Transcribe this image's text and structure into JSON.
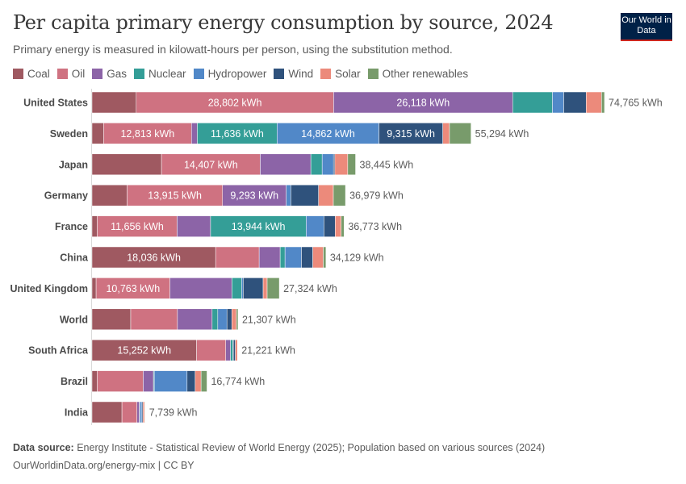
{
  "header": {
    "title": "Per capita primary energy consumption by source, 2024",
    "subtitle": "Primary energy is measured in kilowatt-hours per person, using the substitution method.",
    "logo_text": "Our World in Data"
  },
  "footer": {
    "source_label": "Data source:",
    "source_text": "Energy Institute - Statistical Review of World Energy (2025); Population based on various sources (2024)",
    "url_text": "OurWorldinData.org/energy-mix | CC BY"
  },
  "chart_data": {
    "type": "bar",
    "orientation": "horizontal",
    "stacked": true,
    "title": "Per capita primary energy consumption by source, 2024",
    "unit": "kWh",
    "legend_position": "top",
    "grid": false,
    "categories": [
      "United States",
      "Sweden",
      "Japan",
      "Germany",
      "France",
      "China",
      "United Kingdom",
      "World",
      "South Africa",
      "Brazil",
      "India"
    ],
    "totals": [
      "74,765 kWh",
      "55,294 kWh",
      "38,445 kWh",
      "36,979 kWh",
      "36,773 kWh",
      "34,129 kWh",
      "27,324 kWh",
      "21,307 kWh",
      "21,221 kWh",
      "16,774 kWh",
      "7,739 kWh"
    ],
    "series": [
      {
        "name": "Coal",
        "color": "#9f5961",
        "values": [
          6450,
          1700,
          10140,
          5130,
          760,
          18036,
          600,
          5650,
          15252,
          760,
          4369
        ]
      },
      {
        "name": "Oil",
        "color": "#cf7281",
        "values": [
          28802,
          12813,
          14407,
          13915,
          11656,
          6353,
          10763,
          6817,
          4259,
          6714,
          2190
        ]
      },
      {
        "name": "Gas",
        "color": "#8c64a7",
        "values": [
          26118,
          850,
          7380,
          9293,
          4883,
          3060,
          9051,
          5060,
          700,
          1490,
          350
        ]
      },
      {
        "name": "Nuclear",
        "color": "#349e97",
        "values": [
          5800,
          11636,
          1650,
          0,
          13944,
          710,
          1410,
          820,
          350,
          120,
          90
        ]
      },
      {
        "name": "Hydropower",
        "color": "#5188c8",
        "values": [
          1650,
          14862,
          1650,
          670,
          2590,
          2400,
          240,
          1340,
          60,
          4790,
          280
        ]
      },
      {
        "name": "Wind",
        "color": "#2f527c",
        "values": [
          3270,
          9315,
          200,
          4040,
          1650,
          1650,
          2900,
          710,
          290,
          1180,
          150
        ]
      },
      {
        "name": "Solar",
        "color": "#ec8a7b",
        "values": [
          2240,
          980,
          1880,
          2160,
          860,
          1530,
          590,
          670,
          310,
          860,
          240
        ]
      },
      {
        "name": "Other renewables",
        "color": "#789b6b",
        "values": [
          440,
          3138,
          1140,
          1770,
          430,
          390,
          1770,
          240,
          0,
          860,
          70
        ]
      }
    ],
    "data_labels": [
      [
        "",
        "28,802 kWh",
        "26,118 kWh",
        "",
        "",
        "",
        "",
        ""
      ],
      [
        "",
        "12,813 kWh",
        "",
        "11,636 kWh",
        "14,862 kWh",
        "9,315 kWh",
        "",
        ""
      ],
      [
        "",
        "14,407 kWh",
        "",
        "",
        "",
        "",
        "",
        ""
      ],
      [
        "",
        "13,915 kWh",
        "9,293 kWh",
        "",
        "",
        "",
        "",
        ""
      ],
      [
        "",
        "11,656 kWh",
        "",
        "13,944 kWh",
        "",
        "",
        "",
        ""
      ],
      [
        "18,036 kWh",
        "",
        "",
        "",
        "",
        "",
        "",
        ""
      ],
      [
        "",
        "10,763 kWh",
        "",
        "",
        "",
        "",
        "",
        ""
      ],
      [
        "",
        "",
        "",
        "",
        "",
        "",
        "",
        ""
      ],
      [
        "15,252 kWh",
        "",
        "",
        "",
        "",
        "",
        "",
        ""
      ],
      [
        "",
        "",
        "",
        "",
        "",
        "",
        "",
        ""
      ],
      [
        "",
        "",
        "",
        "",
        "",
        "",
        "",
        ""
      ]
    ]
  }
}
